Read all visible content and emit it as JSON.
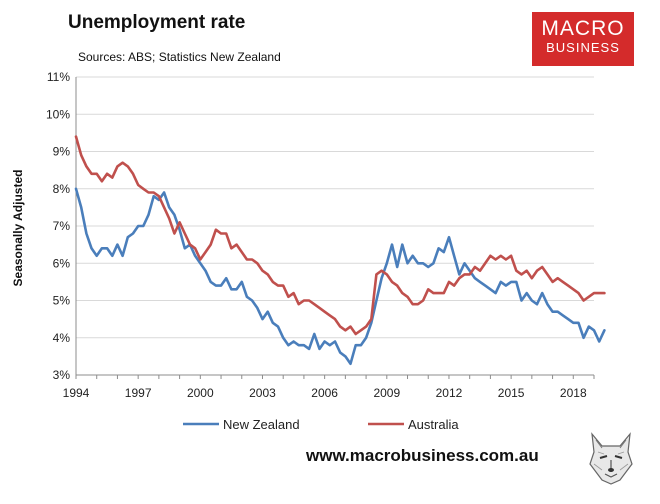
{
  "header": {
    "title": "Unemployment rate",
    "sources": "Sources: ABS; Statistics New Zealand"
  },
  "logo": {
    "line1": "MACRO",
    "line2": "BUSINESS",
    "color": "#d42b2b"
  },
  "footer": {
    "url": "www.macrobusiness.com.au"
  },
  "chart_data": {
    "type": "line",
    "title": "Unemployment rate",
    "xlabel": "",
    "ylabel": "Seasonally Adjusted",
    "xlim": [
      1994,
      2019
    ],
    "ylim": [
      3,
      11
    ],
    "x_ticks": [
      1994,
      1997,
      2000,
      2003,
      2006,
      2009,
      2012,
      2015,
      2018
    ],
    "y_ticks": [
      "3%",
      "4%",
      "5%",
      "6%",
      "7%",
      "8%",
      "9%",
      "10%",
      "11%"
    ],
    "grid": "horizontal",
    "legend": "bottom",
    "series": [
      {
        "name": "New Zealand",
        "color": "#4a7ebb",
        "points": [
          [
            1994.0,
            8.0
          ],
          [
            1994.25,
            7.5
          ],
          [
            1994.5,
            6.8
          ],
          [
            1994.75,
            6.4
          ],
          [
            1995.0,
            6.2
          ],
          [
            1995.25,
            6.4
          ],
          [
            1995.5,
            6.4
          ],
          [
            1995.75,
            6.2
          ],
          [
            1996.0,
            6.5
          ],
          [
            1996.25,
            6.2
          ],
          [
            1996.5,
            6.7
          ],
          [
            1996.75,
            6.8
          ],
          [
            1997.0,
            7.0
          ],
          [
            1997.25,
            7.0
          ],
          [
            1997.5,
            7.3
          ],
          [
            1997.75,
            7.8
          ],
          [
            1998.0,
            7.7
          ],
          [
            1998.25,
            7.9
          ],
          [
            1998.5,
            7.5
          ],
          [
            1998.75,
            7.3
          ],
          [
            1999.0,
            6.9
          ],
          [
            1999.25,
            6.4
          ],
          [
            1999.5,
            6.5
          ],
          [
            1999.75,
            6.2
          ],
          [
            2000.0,
            6.0
          ],
          [
            2000.25,
            5.8
          ],
          [
            2000.5,
            5.5
          ],
          [
            2000.75,
            5.4
          ],
          [
            2001.0,
            5.4
          ],
          [
            2001.25,
            5.6
          ],
          [
            2001.5,
            5.3
          ],
          [
            2001.75,
            5.3
          ],
          [
            2002.0,
            5.5
          ],
          [
            2002.25,
            5.1
          ],
          [
            2002.5,
            5.0
          ],
          [
            2002.75,
            4.8
          ],
          [
            2003.0,
            4.5
          ],
          [
            2003.25,
            4.7
          ],
          [
            2003.5,
            4.4
          ],
          [
            2003.75,
            4.3
          ],
          [
            2004.0,
            4.0
          ],
          [
            2004.25,
            3.8
          ],
          [
            2004.5,
            3.9
          ],
          [
            2004.75,
            3.8
          ],
          [
            2005.0,
            3.8
          ],
          [
            2005.25,
            3.7
          ],
          [
            2005.5,
            4.1
          ],
          [
            2005.75,
            3.7
          ],
          [
            2006.0,
            3.9
          ],
          [
            2006.25,
            3.8
          ],
          [
            2006.5,
            3.9
          ],
          [
            2006.75,
            3.6
          ],
          [
            2007.0,
            3.5
          ],
          [
            2007.25,
            3.3
          ],
          [
            2007.5,
            3.8
          ],
          [
            2007.75,
            3.8
          ],
          [
            2008.0,
            4.0
          ],
          [
            2008.25,
            4.4
          ],
          [
            2008.5,
            5.0
          ],
          [
            2008.75,
            5.6
          ],
          [
            2009.0,
            6.0
          ],
          [
            2009.25,
            6.5
          ],
          [
            2009.5,
            5.9
          ],
          [
            2009.75,
            6.5
          ],
          [
            2010.0,
            6.0
          ],
          [
            2010.25,
            6.2
          ],
          [
            2010.5,
            6.0
          ],
          [
            2010.75,
            6.0
          ],
          [
            2011.0,
            5.9
          ],
          [
            2011.25,
            6.0
          ],
          [
            2011.5,
            6.4
          ],
          [
            2011.75,
            6.3
          ],
          [
            2012.0,
            6.7
          ],
          [
            2012.25,
            6.2
          ],
          [
            2012.5,
            5.7
          ],
          [
            2012.75,
            6.0
          ],
          [
            2013.0,
            5.8
          ],
          [
            2013.25,
            5.6
          ],
          [
            2013.5,
            5.5
          ],
          [
            2013.75,
            5.4
          ],
          [
            2014.0,
            5.3
          ],
          [
            2014.25,
            5.2
          ],
          [
            2014.5,
            5.5
          ],
          [
            2014.75,
            5.4
          ],
          [
            2015.0,
            5.5
          ],
          [
            2015.25,
            5.5
          ],
          [
            2015.5,
            5.0
          ],
          [
            2015.75,
            5.2
          ],
          [
            2016.0,
            5.0
          ],
          [
            2016.25,
            4.9
          ],
          [
            2016.5,
            5.2
          ],
          [
            2016.75,
            4.9
          ],
          [
            2017.0,
            4.7
          ],
          [
            2017.25,
            4.7
          ],
          [
            2017.5,
            4.6
          ],
          [
            2017.75,
            4.5
          ],
          [
            2018.0,
            4.4
          ],
          [
            2018.25,
            4.4
          ],
          [
            2018.5,
            4.0
          ],
          [
            2018.75,
            4.3
          ],
          [
            2019.0,
            4.2
          ],
          [
            2019.25,
            3.9
          ],
          [
            2019.5,
            4.2
          ]
        ]
      },
      {
        "name": "Australia",
        "color": "#c0504d",
        "points": [
          [
            1994.0,
            9.4
          ],
          [
            1994.25,
            8.9
          ],
          [
            1994.5,
            8.6
          ],
          [
            1994.75,
            8.4
          ],
          [
            1995.0,
            8.4
          ],
          [
            1995.25,
            8.2
          ],
          [
            1995.5,
            8.4
          ],
          [
            1995.75,
            8.3
          ],
          [
            1996.0,
            8.6
          ],
          [
            1996.25,
            8.7
          ],
          [
            1996.5,
            8.6
          ],
          [
            1996.75,
            8.4
          ],
          [
            1997.0,
            8.1
          ],
          [
            1997.25,
            8.0
          ],
          [
            1997.5,
            7.9
          ],
          [
            1997.75,
            7.9
          ],
          [
            1998.0,
            7.8
          ],
          [
            1998.25,
            7.5
          ],
          [
            1998.5,
            7.2
          ],
          [
            1998.75,
            6.8
          ],
          [
            1999.0,
            7.1
          ],
          [
            1999.25,
            6.8
          ],
          [
            1999.5,
            6.5
          ],
          [
            1999.75,
            6.4
          ],
          [
            2000.0,
            6.1
          ],
          [
            2000.25,
            6.3
          ],
          [
            2000.5,
            6.5
          ],
          [
            2000.75,
            6.9
          ],
          [
            2001.0,
            6.8
          ],
          [
            2001.25,
            6.8
          ],
          [
            2001.5,
            6.4
          ],
          [
            2001.75,
            6.5
          ],
          [
            2002.0,
            6.3
          ],
          [
            2002.25,
            6.1
          ],
          [
            2002.5,
            6.1
          ],
          [
            2002.75,
            6.0
          ],
          [
            2003.0,
            5.8
          ],
          [
            2003.25,
            5.7
          ],
          [
            2003.5,
            5.5
          ],
          [
            2003.75,
            5.4
          ],
          [
            2004.0,
            5.4
          ],
          [
            2004.25,
            5.1
          ],
          [
            2004.5,
            5.2
          ],
          [
            2004.75,
            4.9
          ],
          [
            2005.0,
            5.0
          ],
          [
            2005.25,
            5.0
          ],
          [
            2005.5,
            4.9
          ],
          [
            2005.75,
            4.8
          ],
          [
            2006.0,
            4.7
          ],
          [
            2006.25,
            4.6
          ],
          [
            2006.5,
            4.5
          ],
          [
            2006.75,
            4.3
          ],
          [
            2007.0,
            4.2
          ],
          [
            2007.25,
            4.3
          ],
          [
            2007.5,
            4.1
          ],
          [
            2007.75,
            4.2
          ],
          [
            2008.0,
            4.3
          ],
          [
            2008.25,
            4.5
          ],
          [
            2008.5,
            5.7
          ],
          [
            2008.75,
            5.8
          ],
          [
            2009.0,
            5.7
          ],
          [
            2009.25,
            5.5
          ],
          [
            2009.5,
            5.4
          ],
          [
            2009.75,
            5.2
          ],
          [
            2010.0,
            5.1
          ],
          [
            2010.25,
            4.9
          ],
          [
            2010.5,
            4.9
          ],
          [
            2010.75,
            5.0
          ],
          [
            2011.0,
            5.3
          ],
          [
            2011.25,
            5.2
          ],
          [
            2011.5,
            5.2
          ],
          [
            2011.75,
            5.2
          ],
          [
            2012.0,
            5.5
          ],
          [
            2012.25,
            5.4
          ],
          [
            2012.5,
            5.6
          ],
          [
            2012.75,
            5.7
          ],
          [
            2013.0,
            5.7
          ],
          [
            2013.25,
            5.9
          ],
          [
            2013.5,
            5.8
          ],
          [
            2013.75,
            6.0
          ],
          [
            2014.0,
            6.2
          ],
          [
            2014.25,
            6.1
          ],
          [
            2014.5,
            6.2
          ],
          [
            2014.75,
            6.1
          ],
          [
            2015.0,
            6.2
          ],
          [
            2015.25,
            5.8
          ],
          [
            2015.5,
            5.7
          ],
          [
            2015.75,
            5.8
          ],
          [
            2016.0,
            5.6
          ],
          [
            2016.25,
            5.8
          ],
          [
            2016.5,
            5.9
          ],
          [
            2016.75,
            5.7
          ],
          [
            2017.0,
            5.5
          ],
          [
            2017.25,
            5.6
          ],
          [
            2017.5,
            5.5
          ],
          [
            2017.75,
            5.4
          ],
          [
            2018.0,
            5.3
          ],
          [
            2018.25,
            5.2
          ],
          [
            2018.5,
            5.0
          ],
          [
            2018.75,
            5.1
          ],
          [
            2019.0,
            5.2
          ],
          [
            2019.25,
            5.2
          ],
          [
            2019.5,
            5.2
          ]
        ]
      }
    ]
  }
}
